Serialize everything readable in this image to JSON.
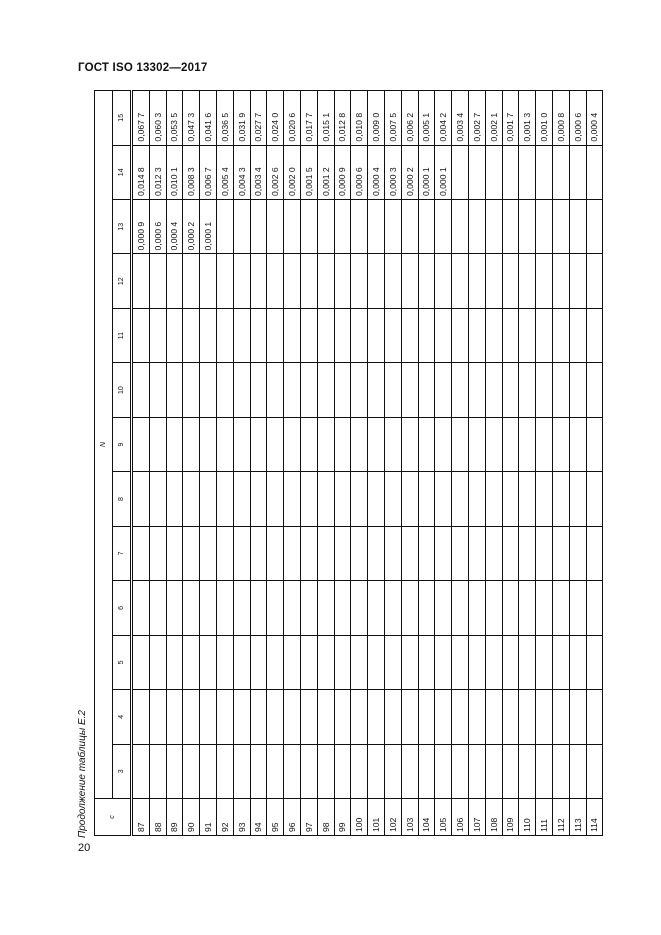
{
  "header": {
    "title": "ГОСТ ISO 13302—2017"
  },
  "caption": "Продолжение таблицы Е.2",
  "page_number": "20",
  "table": {
    "c_header": "c",
    "n_header": "N",
    "n_columns": [
      "3",
      "4",
      "5",
      "6",
      "7",
      "8",
      "9",
      "10",
      "11",
      "12",
      "13",
      "14",
      "15"
    ],
    "rows": [
      {
        "c": "87",
        "v13": "0,000 9",
        "v14": "0,014 8",
        "v15": "0,067 7"
      },
      {
        "c": "88",
        "v13": "0,000 6",
        "v14": "0,012 3",
        "v15": "0,060 3"
      },
      {
        "c": "89",
        "v13": "0,000 4",
        "v14": "0,010 1",
        "v15": "0,053 5"
      },
      {
        "c": "90",
        "v13": "0,000 2",
        "v14": "0,008 3",
        "v15": "0,047 3"
      },
      {
        "c": "91",
        "v13": "0,000 1",
        "v14": "0,006 7",
        "v15": "0,041 6"
      },
      {
        "c": "92",
        "v13": "",
        "v14": "0,005 4",
        "v15": "0,036 5"
      },
      {
        "c": "93",
        "v13": "",
        "v14": "0,004 3",
        "v15": "0,031 9"
      },
      {
        "c": "94",
        "v13": "",
        "v14": "0,003 4",
        "v15": "0,027 7"
      },
      {
        "c": "95",
        "v13": "",
        "v14": "0,002 6",
        "v15": "0,024 0"
      },
      {
        "c": "96",
        "v13": "",
        "v14": "0,002 0",
        "v15": "0,020 6"
      },
      {
        "c": "97",
        "v13": "",
        "v14": "0,001 5",
        "v15": "0,017 7"
      },
      {
        "c": "98",
        "v13": "",
        "v14": "0,001 2",
        "v15": "0,015 1"
      },
      {
        "c": "99",
        "v13": "",
        "v14": "0,000 9",
        "v15": "0,012 8"
      },
      {
        "c": "100",
        "v13": "",
        "v14": "0,000 6",
        "v15": "0,010 8"
      },
      {
        "c": "101",
        "v13": "",
        "v14": "0,000 4",
        "v15": "0,009 0"
      },
      {
        "c": "102",
        "v13": "",
        "v14": "0,000 3",
        "v15": "0,007 5"
      },
      {
        "c": "103",
        "v13": "",
        "v14": "0,000 2",
        "v15": "0,006 2"
      },
      {
        "c": "104",
        "v13": "",
        "v14": "0,000 1",
        "v15": "0,005 1"
      },
      {
        "c": "105",
        "v13": "",
        "v14": "0,000 1",
        "v15": "0,004 2"
      },
      {
        "c": "106",
        "v13": "",
        "v14": "",
        "v15": "0,003 4"
      },
      {
        "c": "107",
        "v13": "",
        "v14": "",
        "v15": "0,002 7"
      },
      {
        "c": "108",
        "v13": "",
        "v14": "",
        "v15": "0,002 1"
      },
      {
        "c": "109",
        "v13": "",
        "v14": "",
        "v15": "0,001 7"
      },
      {
        "c": "110",
        "v13": "",
        "v14": "",
        "v15": "0,001 3"
      },
      {
        "c": "111",
        "v13": "",
        "v14": "",
        "v15": "0,001 0"
      },
      {
        "c": "112",
        "v13": "",
        "v14": "",
        "v15": "0,000 8"
      },
      {
        "c": "113",
        "v13": "",
        "v14": "",
        "v15": "0,000 6"
      },
      {
        "c": "114",
        "v13": "",
        "v14": "",
        "v15": "0,000 4"
      }
    ]
  }
}
